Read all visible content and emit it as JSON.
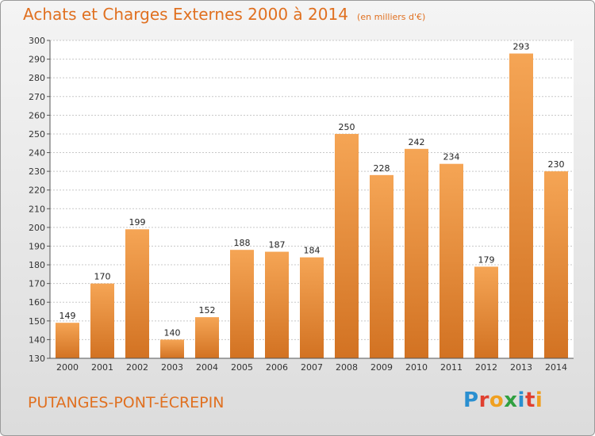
{
  "title": "Achats et Charges Externes 2000 à 2014",
  "unit_note": "(en milliers d'€)",
  "place_name": "PUTANGES-PONT-ÉCREPIN",
  "logo": {
    "text": "Proxiti",
    "letters": [
      "P",
      "r",
      "o",
      "x",
      "i",
      "t",
      "i"
    ],
    "colors": [
      "#2a8fd0",
      "#e04030",
      "#f0a020",
      "#30a040",
      "#2a8fd0",
      "#e04030",
      "#f0a020"
    ]
  },
  "colors": {
    "accent": "#e07020",
    "bar_top": "#f5a555",
    "bar_bottom": "#d27222"
  },
  "chart_data": {
    "type": "bar",
    "categories": [
      "2000",
      "2001",
      "2002",
      "2003",
      "2004",
      "2005",
      "2006",
      "2007",
      "2008",
      "2009",
      "2010",
      "2011",
      "2012",
      "2013",
      "2014"
    ],
    "values": [
      149,
      170,
      199,
      140,
      152,
      188,
      187,
      184,
      250,
      228,
      242,
      234,
      179,
      293,
      230
    ],
    "ylim": [
      130,
      300
    ],
    "yticks": [
      130,
      140,
      150,
      160,
      170,
      180,
      190,
      200,
      210,
      220,
      230,
      240,
      250,
      260,
      270,
      280,
      290,
      300
    ],
    "grid": true,
    "legend": "none"
  }
}
